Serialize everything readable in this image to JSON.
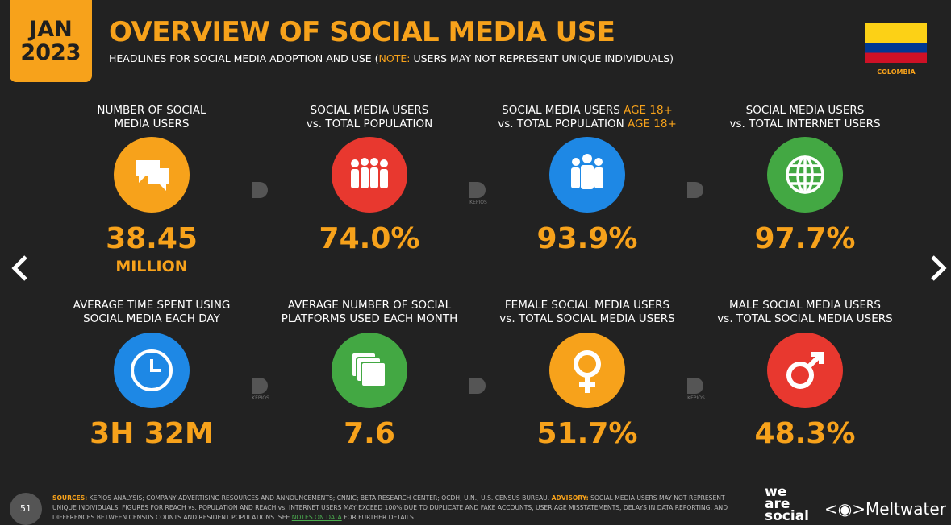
{
  "badge": {
    "month": "JAN",
    "year": "2023"
  },
  "header": {
    "title": "OVERVIEW OF SOCIAL MEDIA USE",
    "subtitle": {
      "before": "HEADLINES FOR SOCIAL MEDIA ADOPTION AND USE (",
      "note": "NOTE:",
      "after": "USERS MAY NOT REPRESENT UNIQUE INDIVIDUALS)"
    }
  },
  "country": "COLOMBIA",
  "watermark": "KEPIOS",
  "tiles": [
    {
      "label": [
        [
          "NUMBER OF SOCIAL"
        ],
        [
          "MEDIA USERS"
        ]
      ],
      "value": "38.45",
      "unit": "MILLION"
    },
    {
      "label": [
        [
          "SOCIAL MEDIA USERS"
        ],
        [
          "vs. TOTAL POPULATION"
        ]
      ],
      "value": "74.0%"
    },
    {
      "label": [
        [
          "SOCIAL MEDIA USERS",
          "AGE 18+"
        ],
        [
          "vs. TOTAL POPULATION",
          "AGE 18+"
        ]
      ],
      "value": "93.9%"
    },
    {
      "label": [
        [
          "SOCIAL MEDIA USERS"
        ],
        [
          "vs. TOTAL INTERNET USERS"
        ]
      ],
      "value": "97.7%"
    },
    {
      "label": [
        [
          "AVERAGE TIME SPENT USING"
        ],
        [
          "SOCIAL MEDIA EACH DAY"
        ]
      ],
      "value": "3H 32M"
    },
    {
      "label": [
        [
          "AVERAGE NUMBER OF SOCIAL"
        ],
        [
          "PLATFORMS USED EACH MONTH"
        ]
      ],
      "value": "7.6"
    },
    {
      "label": [
        [
          "FEMALE SOCIAL MEDIA USERS"
        ],
        [
          "vs. TOTAL SOCIAL MEDIA USERS"
        ]
      ],
      "value": "51.7%"
    },
    {
      "label": [
        [
          "MALE SOCIAL MEDIA USERS"
        ],
        [
          "vs. TOTAL SOCIAL MEDIA USERS"
        ]
      ],
      "value": "48.3%"
    }
  ],
  "footer": {
    "page_number": "51",
    "sources_label": "SOURCES:",
    "sources": "KEPIOS ANALYSIS; COMPANY ADVERTISING RESOURCES AND ANNOUNCEMENTS; CNNIC; BETA RESEARCH CENTER; OCDH; U.N.; U.S. CENSUS BUREAU.",
    "advisory_label": "ADVISORY:",
    "advisory": "SOCIAL MEDIA USERS MAY NOT REPRESENT UNIQUE INDIVIDUALS. FIGURES FOR REACH vs. POPULATION AND REACH vs. INTERNET USERS MAY EXCEED 100% DUE TO DUPLICATE AND FAKE ACCOUNTS, USER AGE MISSTATEMENTS, DELAYS IN DATA REPORTING, AND DIFFERENCES BETWEEN CENSUS COUNTS AND RESIDENT POPULATIONS. SEE",
    "link": "NOTES ON DATA",
    "after_link": "FOR FURTHER DETAILS."
  },
  "brand": {
    "we_are_social": [
      "we",
      "are",
      "social"
    ],
    "meltwater": "Meltwater"
  }
}
